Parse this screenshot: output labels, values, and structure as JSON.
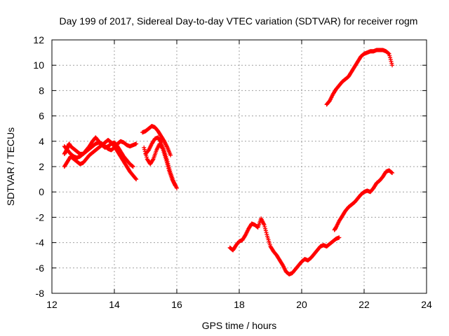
{
  "chart_data": {
    "type": "scatter",
    "title": "Day 199 of 2017, Sidereal Day-to-day VTEC variation (SDTVAR) for receiver rogm",
    "xlabel": "GPS time / hours",
    "ylabel": "SDTVAR / TECUs",
    "xlim": [
      12,
      24
    ],
    "ylim": [
      -8,
      12
    ],
    "xticks": [
      "12",
      "14",
      "16",
      "18",
      "20",
      "22",
      "24"
    ],
    "yticks": [
      "-8",
      "-6",
      "-4",
      "-2",
      "0",
      "2",
      "4",
      "6",
      "8",
      "10",
      "12"
    ],
    "grid": true,
    "marker": "plus",
    "color": "#ff0000",
    "series": [
      {
        "x": [
          12.4,
          12.45,
          12.5,
          12.55,
          12.6,
          12.7,
          12.8,
          12.9,
          13.0,
          13.1,
          13.2,
          13.3,
          13.4,
          13.5,
          13.6,
          13.7,
          13.8,
          13.9,
          14.0,
          14.1,
          14.2,
          14.3,
          14.4,
          14.5,
          14.6,
          14.7
        ],
        "y": [
          3.0,
          3.2,
          3.5,
          3.8,
          3.6,
          3.4,
          3.2,
          3.0,
          3.0,
          3.2,
          3.4,
          3.6,
          3.8,
          3.9,
          3.8,
          3.6,
          3.4,
          3.3,
          3.5,
          3.8,
          4.0,
          3.9,
          3.7,
          3.6,
          3.7,
          3.8
        ]
      },
      {
        "x": [
          12.4,
          12.5,
          12.6,
          12.7,
          12.8,
          12.9,
          13.0,
          13.1,
          13.2,
          13.3,
          13.4,
          13.5,
          13.6,
          13.7,
          13.8,
          13.9,
          14.0,
          14.1,
          14.2,
          14.3,
          14.4,
          14.5,
          14.6,
          14.7
        ],
        "y": [
          2.0,
          2.4,
          2.8,
          2.6,
          2.4,
          2.2,
          2.3,
          2.6,
          2.9,
          3.1,
          3.3,
          3.5,
          3.7,
          3.9,
          4.1,
          3.9,
          3.6,
          3.2,
          2.8,
          2.4,
          2.0,
          1.6,
          1.3,
          1.0
        ]
      },
      {
        "x": [
          12.4,
          12.5,
          12.6,
          12.7,
          12.8,
          12.9,
          13.0,
          13.1,
          13.2,
          13.3,
          13.4,
          13.5,
          13.6,
          13.7,
          13.8,
          13.9,
          14.0,
          14.1,
          14.2,
          14.3,
          14.4,
          14.5,
          14.6
        ],
        "y": [
          3.6,
          3.3,
          3.0,
          2.8,
          2.7,
          2.8,
          3.0,
          3.3,
          3.6,
          4.0,
          4.3,
          4.0,
          3.7,
          3.5,
          3.6,
          3.8,
          3.9,
          3.6,
          3.2,
          2.8,
          2.5,
          2.2,
          2.0
        ]
      },
      {
        "x": [
          14.9,
          15.0,
          15.1,
          15.2,
          15.3,
          15.4,
          15.5,
          15.6,
          15.7,
          15.8
        ],
        "y": [
          4.7,
          4.8,
          5.0,
          5.2,
          5.1,
          4.8,
          4.4,
          4.0,
          3.5,
          2.9
        ]
      },
      {
        "x": [
          15.0,
          15.1,
          15.2,
          15.3,
          15.4,
          15.5,
          15.6,
          15.7,
          15.8,
          15.9,
          16.0
        ],
        "y": [
          3.0,
          3.3,
          3.8,
          4.2,
          4.3,
          3.9,
          3.2,
          2.4,
          1.5,
          0.8,
          0.3
        ]
      },
      {
        "x": [
          14.95,
          15.05,
          15.15,
          15.25,
          15.35,
          15.45,
          15.55,
          15.65,
          15.75,
          15.85,
          15.95
        ],
        "y": [
          3.5,
          2.6,
          2.2,
          2.6,
          3.3,
          3.8,
          3.4,
          2.6,
          1.7,
          1.0,
          0.5
        ]
      },
      {
        "x": [
          17.7,
          17.8,
          17.9,
          18.0,
          18.1,
          18.2,
          18.3,
          18.4,
          18.5,
          18.6,
          18.7,
          18.8,
          18.9,
          19.0,
          19.1,
          19.2,
          19.3,
          19.4,
          19.5,
          19.6,
          19.7,
          19.8,
          19.9,
          20.0,
          20.1,
          20.2,
          20.3,
          20.4,
          20.5,
          20.6,
          20.7,
          20.8,
          20.9,
          21.0,
          21.1,
          21.2
        ],
        "y": [
          -4.4,
          -4.6,
          -4.2,
          -3.9,
          -3.8,
          -3.4,
          -2.9,
          -2.5,
          -2.6,
          -2.8,
          -2.1,
          -2.6,
          -3.5,
          -4.3,
          -4.7,
          -5.0,
          -5.4,
          -5.8,
          -6.3,
          -6.5,
          -6.4,
          -6.1,
          -5.8,
          -5.5,
          -5.3,
          -5.4,
          -5.2,
          -4.9,
          -4.6,
          -4.3,
          -4.2,
          -4.3,
          -4.1,
          -3.9,
          -3.7,
          -3.6
        ]
      },
      {
        "x": [
          21.05,
          21.1,
          21.2,
          21.3,
          21.4,
          21.5,
          21.6,
          21.7,
          21.8,
          21.9,
          22.0,
          22.1,
          22.2,
          22.3,
          22.4,
          22.5,
          22.6,
          22.7,
          22.8,
          22.9
        ],
        "y": [
          -3.0,
          -2.8,
          -2.3,
          -1.9,
          -1.5,
          -1.2,
          -1.0,
          -0.8,
          -0.5,
          -0.2,
          0.0,
          0.1,
          0.0,
          0.3,
          0.7,
          0.9,
          1.2,
          1.6,
          1.7,
          1.5
        ]
      },
      {
        "x": [
          20.8,
          20.9,
          21.0,
          21.1,
          21.2,
          21.3,
          21.4,
          21.5,
          21.6,
          21.7,
          21.8,
          21.9,
          22.0,
          22.1,
          22.2,
          22.3,
          22.4,
          22.5,
          22.6,
          22.7,
          22.8,
          22.9
        ],
        "y": [
          6.9,
          7.2,
          7.7,
          8.1,
          8.4,
          8.7,
          8.9,
          9.1,
          9.5,
          9.9,
          10.3,
          10.7,
          10.9,
          11.0,
          11.1,
          11.1,
          11.2,
          11.2,
          11.2,
          11.1,
          10.9,
          10.0
        ]
      }
    ]
  }
}
